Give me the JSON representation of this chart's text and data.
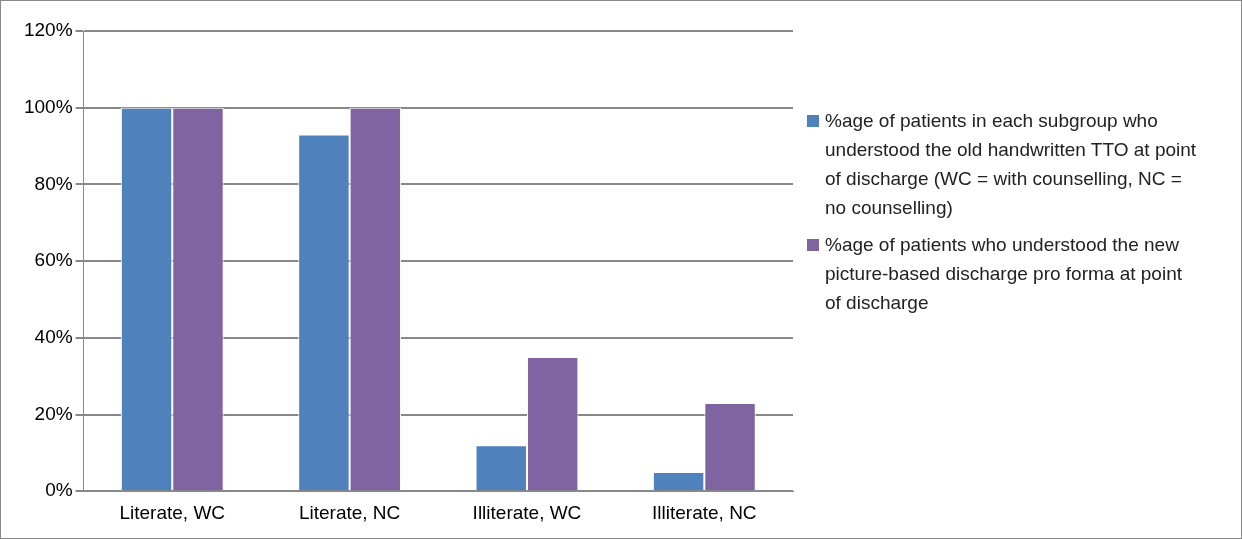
{
  "chart_data": {
    "type": "bar",
    "categories": [
      "Literate, WC",
      "Literate, NC",
      "Illiterate, WC",
      "Illiterate, NC"
    ],
    "series": [
      {
        "name": "%age of patients in each subgroup who understood the old handwritten TTO at point of discharge (WC = with counselling, NC = no counselling)",
        "color": "#4f81bd",
        "values": [
          100,
          93,
          12,
          5
        ]
      },
      {
        "name": "%age of patients who understood the new picture-based discharge pro forma at point of discharge",
        "color": "#8064a2",
        "values": [
          100,
          100,
          35,
          23
        ]
      }
    ],
    "ylim": [
      0,
      120
    ],
    "yticks": [
      {
        "value": 0,
        "label": "0%"
      },
      {
        "value": 20,
        "label": "20%"
      },
      {
        "value": 40,
        "label": "40%"
      },
      {
        "value": 60,
        "label": "60%"
      },
      {
        "value": 80,
        "label": "80%"
      },
      {
        "value": 100,
        "label": "100%"
      },
      {
        "value": 120,
        "label": "120%"
      }
    ],
    "grid": "y",
    "legend": "right"
  }
}
